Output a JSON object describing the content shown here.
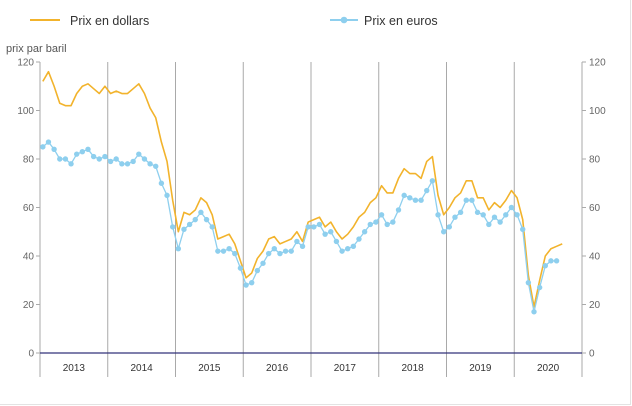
{
  "chart_data": {
    "type": "line",
    "y_unit_label": "prix par baril",
    "ylim": [
      0,
      120
    ],
    "y_ticks": [
      0,
      20,
      40,
      60,
      80,
      100,
      120
    ],
    "x_years": [
      "2013",
      "2014",
      "2015",
      "2016",
      "2017",
      "2018",
      "2019",
      "2020"
    ],
    "x_range": [
      "2013-01",
      "2020-09"
    ],
    "grid": "vertical lines at year boundaries; horizontal gridline at 0",
    "legend_position": "top",
    "series": [
      {
        "name": "Prix en dollars",
        "color": "#f2b32c",
        "marker": "none",
        "x": [
          "2013-01",
          "2013-02",
          "2013-03",
          "2013-04",
          "2013-05",
          "2013-06",
          "2013-07",
          "2013-08",
          "2013-09",
          "2013-10",
          "2013-11",
          "2013-12",
          "2014-01",
          "2014-02",
          "2014-03",
          "2014-04",
          "2014-05",
          "2014-06",
          "2014-07",
          "2014-08",
          "2014-09",
          "2014-10",
          "2014-11",
          "2014-12",
          "2015-01",
          "2015-02",
          "2015-03",
          "2015-04",
          "2015-05",
          "2015-06",
          "2015-07",
          "2015-08",
          "2015-09",
          "2015-10",
          "2015-11",
          "2015-12",
          "2016-01",
          "2016-02",
          "2016-03",
          "2016-04",
          "2016-05",
          "2016-06",
          "2016-07",
          "2016-08",
          "2016-09",
          "2016-10",
          "2016-11",
          "2016-12",
          "2017-01",
          "2017-02",
          "2017-03",
          "2017-04",
          "2017-05",
          "2017-06",
          "2017-07",
          "2017-08",
          "2017-09",
          "2017-10",
          "2017-11",
          "2017-12",
          "2018-01",
          "2018-02",
          "2018-03",
          "2018-04",
          "2018-05",
          "2018-06",
          "2018-07",
          "2018-08",
          "2018-09",
          "2018-10",
          "2018-11",
          "2018-12",
          "2019-01",
          "2019-02",
          "2019-03",
          "2019-04",
          "2019-05",
          "2019-06",
          "2019-07",
          "2019-08",
          "2019-09",
          "2019-10",
          "2019-11",
          "2019-12",
          "2020-01",
          "2020-02",
          "2020-03",
          "2020-04",
          "2020-05",
          "2020-06",
          "2020-07",
          "2020-08",
          "2020-09"
        ],
        "values": [
          112,
          116,
          110,
          103,
          102,
          102,
          107,
          110,
          111,
          109,
          107,
          110,
          107,
          108,
          107,
          107,
          109,
          111,
          107,
          101,
          97,
          87,
          79,
          63,
          50,
          58,
          57,
          59,
          64,
          62,
          57,
          47,
          48,
          49,
          45,
          38,
          31,
          33,
          39,
          42,
          47,
          48,
          45,
          46,
          47,
          50,
          46,
          54,
          55,
          56,
          52,
          54,
          50,
          47,
          49,
          52,
          56,
          58,
          62,
          64,
          69,
          66,
          66,
          72,
          76,
          74,
          74,
          72,
          79,
          81,
          65,
          57,
          60,
          64,
          66,
          71,
          71,
          64,
          64,
          59,
          62,
          60,
          63,
          67,
          64,
          55,
          32,
          19,
          30,
          40,
          43,
          44,
          45
        ]
      },
      {
        "name": "Prix en euros",
        "color": "#8ecfee",
        "marker": "circle",
        "x": [
          "2013-01",
          "2013-02",
          "2013-03",
          "2013-04",
          "2013-05",
          "2013-06",
          "2013-07",
          "2013-08",
          "2013-09",
          "2013-10",
          "2013-11",
          "2013-12",
          "2014-01",
          "2014-02",
          "2014-03",
          "2014-04",
          "2014-05",
          "2014-06",
          "2014-07",
          "2014-08",
          "2014-09",
          "2014-10",
          "2014-11",
          "2014-12",
          "2015-01",
          "2015-02",
          "2015-03",
          "2015-04",
          "2015-05",
          "2015-06",
          "2015-07",
          "2015-08",
          "2015-09",
          "2015-10",
          "2015-11",
          "2015-12",
          "2016-01",
          "2016-02",
          "2016-03",
          "2016-04",
          "2016-05",
          "2016-06",
          "2016-07",
          "2016-08",
          "2016-09",
          "2016-10",
          "2016-11",
          "2016-12",
          "2017-01",
          "2017-02",
          "2017-03",
          "2017-04",
          "2017-05",
          "2017-06",
          "2017-07",
          "2017-08",
          "2017-09",
          "2017-10",
          "2017-11",
          "2017-12",
          "2018-01",
          "2018-02",
          "2018-03",
          "2018-04",
          "2018-05",
          "2018-06",
          "2018-07",
          "2018-08",
          "2018-09",
          "2018-10",
          "2018-11",
          "2018-12",
          "2019-01",
          "2019-02",
          "2019-03",
          "2019-04",
          "2019-05",
          "2019-06",
          "2019-07",
          "2019-08",
          "2019-09",
          "2019-10",
          "2019-11",
          "2019-12",
          "2020-01",
          "2020-02",
          "2020-03",
          "2020-04",
          "2020-05",
          "2020-06",
          "2020-07",
          "2020-08"
        ],
        "values": [
          85,
          87,
          84,
          80,
          80,
          78,
          82,
          83,
          84,
          81,
          80,
          81,
          79,
          80,
          78,
          78,
          79,
          82,
          80,
          78,
          77,
          70,
          65,
          52,
          43,
          51,
          53,
          55,
          58,
          55,
          52,
          42,
          42,
          43,
          41,
          35,
          28,
          29,
          34,
          37,
          41,
          43,
          41,
          42,
          42,
          46,
          44,
          52,
          52,
          53,
          49,
          50,
          46,
          42,
          43,
          44,
          47,
          50,
          53,
          54,
          57,
          53,
          54,
          59,
          65,
          64,
          63,
          63,
          67,
          71,
          57,
          50,
          52,
          56,
          58,
          63,
          63,
          58,
          57,
          53,
          56,
          54,
          57,
          60,
          57,
          51,
          29,
          17,
          27,
          36,
          38,
          38
        ]
      }
    ]
  }
}
